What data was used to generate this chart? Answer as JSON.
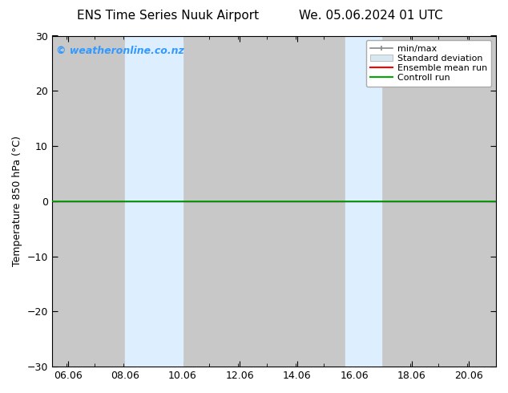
{
  "title_left": "ENS Time Series Nuuk Airport",
  "title_right": "We. 05.06.2024 01 UTC",
  "ylabel": "Temperature 850 hPa (°C)",
  "xlabel": "",
  "xlim": [
    5.5,
    21.0
  ],
  "ylim": [
    -30,
    30
  ],
  "yticks": [
    -30,
    -20,
    -10,
    0,
    10,
    20,
    30
  ],
  "xticks": [
    6.06,
    8.06,
    10.06,
    12.06,
    14.06,
    16.06,
    18.06,
    20.06
  ],
  "xtick_labels": [
    "06.06",
    "08.06",
    "10.06",
    "12.06",
    "14.06",
    "16.06",
    "18.06",
    "20.06"
  ],
  "watermark": "© weatheronline.co.nz",
  "watermark_color": "#3399ff",
  "background_color": "#ffffff",
  "plot_bg_color": "#c8c8c8",
  "shaded_bands": [
    {
      "x_start": 8.06,
      "x_end": 10.06,
      "color": "#ddeeff"
    },
    {
      "x_start": 15.75,
      "x_end": 17.0,
      "color": "#ddeeff"
    }
  ],
  "zero_line_y": 0,
  "zero_line_color": "#000000",
  "control_run_y": 0,
  "control_run_color": "#00aa00",
  "ensemble_mean_color": "#ff0000",
  "std_dev_color": "#c8d8e8",
  "minmax_color": "#888888",
  "legend_items": [
    {
      "label": "min/max",
      "color": "#888888",
      "style": "line"
    },
    {
      "label": "Standard deviation",
      "color": "#c8d8e8",
      "style": "band"
    },
    {
      "label": "Ensemble mean run",
      "color": "#ff0000",
      "style": "line"
    },
    {
      "label": "Controll run",
      "color": "#00aa00",
      "style": "line"
    }
  ],
  "title_fontsize": 11,
  "tick_fontsize": 9,
  "label_fontsize": 9,
  "watermark_fontsize": 9
}
